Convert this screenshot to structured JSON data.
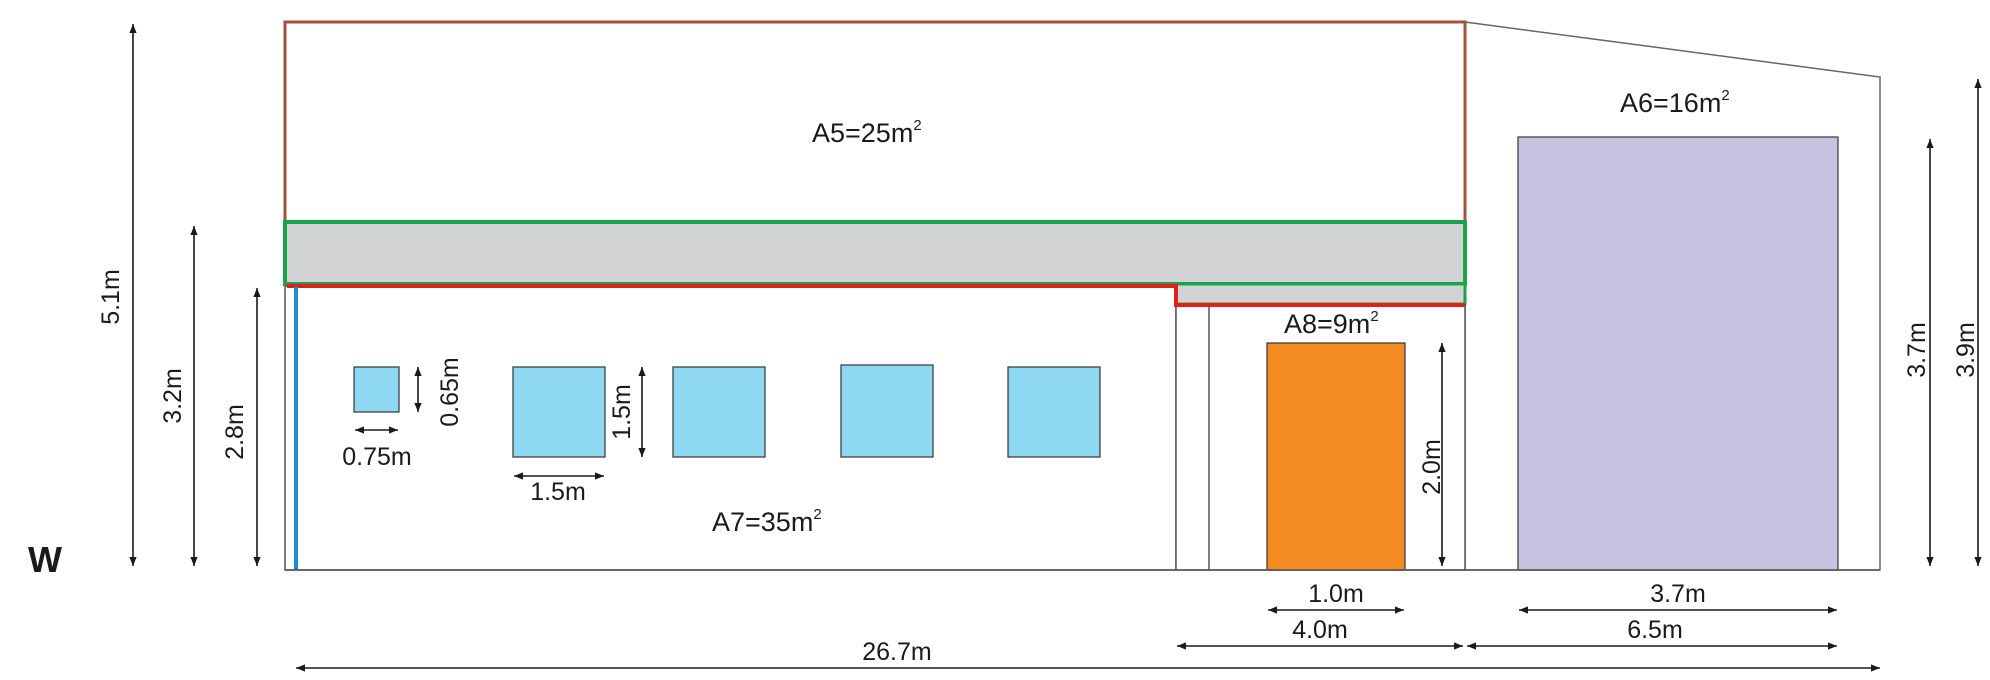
{
  "side_label": "W",
  "areas": {
    "a5": "A5=25m",
    "a6": "A6=16m",
    "a7": "A7=35m",
    "a8": "A8=9m",
    "unit_sup": "2"
  },
  "dimensions": {
    "h_5_1": "5.1m",
    "h_3_2": "3.2m",
    "h_2_8": "2.8m",
    "win_h_small": "0.65m",
    "win_w_small": "0.75m",
    "win_h_large": "1.5m",
    "win_w_large": "1.5m",
    "door_h": "2.0m",
    "door_w": "1.0m",
    "seg_w_mid": "4.0m",
    "garage_w": "3.7m",
    "seg_w_right": "6.5m",
    "total_w": "26.7m",
    "h_3_7": "3.7m",
    "h_3_9": "3.9m"
  },
  "colors": {
    "roof_outline": "#a0523a",
    "band_fill": "#d1d3d4",
    "band_outline": "#1aa34a",
    "eave_line": "#e0211b",
    "corner_line": "#1b8fd1",
    "window_fill": "#8fd8f4",
    "door_fill": "#f28c22",
    "garage_fill": "#c5c3e0",
    "wall_line": "#333333"
  }
}
